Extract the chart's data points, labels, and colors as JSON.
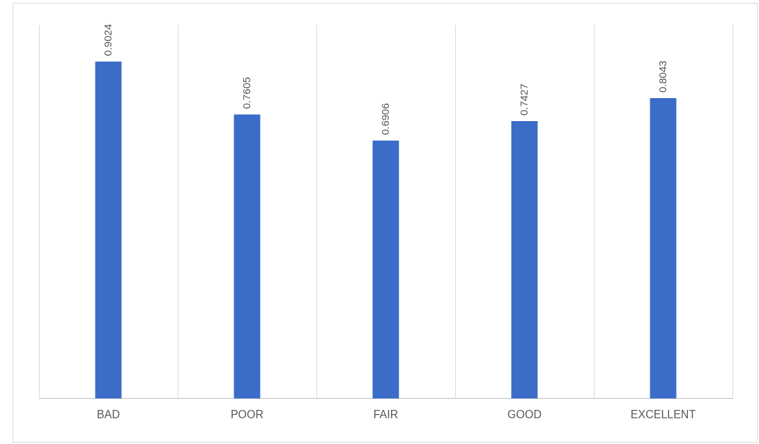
{
  "chart_data": {
    "type": "bar",
    "categories": [
      "BAD",
      "POOR",
      "FAIR",
      "GOOD",
      "EXCELLENT"
    ],
    "values": [
      0.9024,
      0.7605,
      0.6906,
      0.7427,
      0.8043
    ],
    "color": "#3a6cc8",
    "ylim": [
      0,
      1
    ],
    "grid": "x",
    "data_labels": true,
    "tick_labels": "x"
  }
}
